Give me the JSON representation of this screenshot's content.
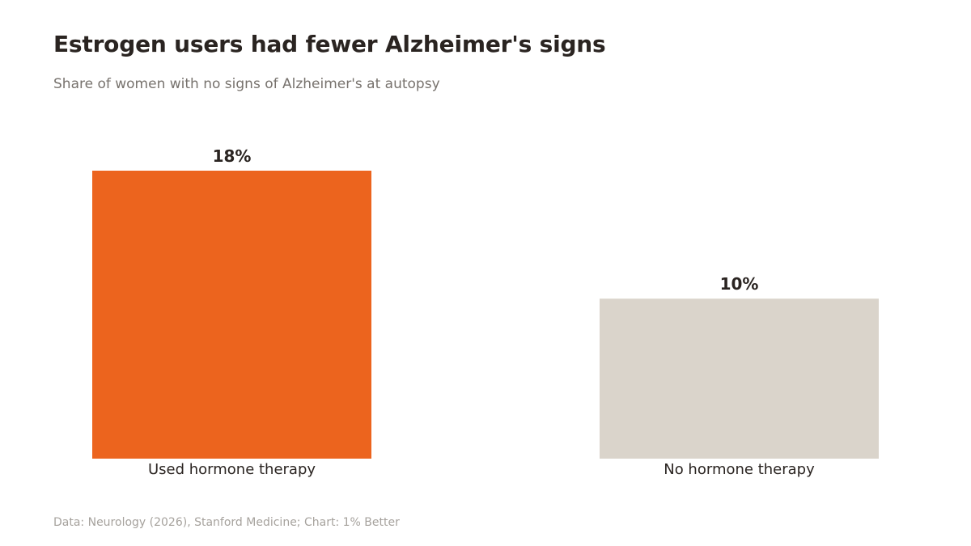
{
  "header": {
    "title": "Estrogen users had fewer Alzheimer's signs",
    "subtitle": "Share of women with no signs of Alzheimer's at autopsy"
  },
  "footer": {
    "source": "Data: Neurology (2026), Stanford Medicine; Chart: 1% Better"
  },
  "chart_data": {
    "type": "bar",
    "title": "Estrogen users had fewer Alzheimer's signs",
    "subtitle": "Share of women with no signs of Alzheimer's at autopsy",
    "categories": [
      "Used hormone therapy",
      "No hormone therapy"
    ],
    "values": [
      18,
      10
    ],
    "value_labels": [
      "18%",
      "10%"
    ],
    "colors": [
      "#ec641e",
      "#dad4cb"
    ],
    "xlabel": "",
    "ylabel": "",
    "ylim": [
      0,
      18
    ],
    "grid": false,
    "legend": "none"
  }
}
